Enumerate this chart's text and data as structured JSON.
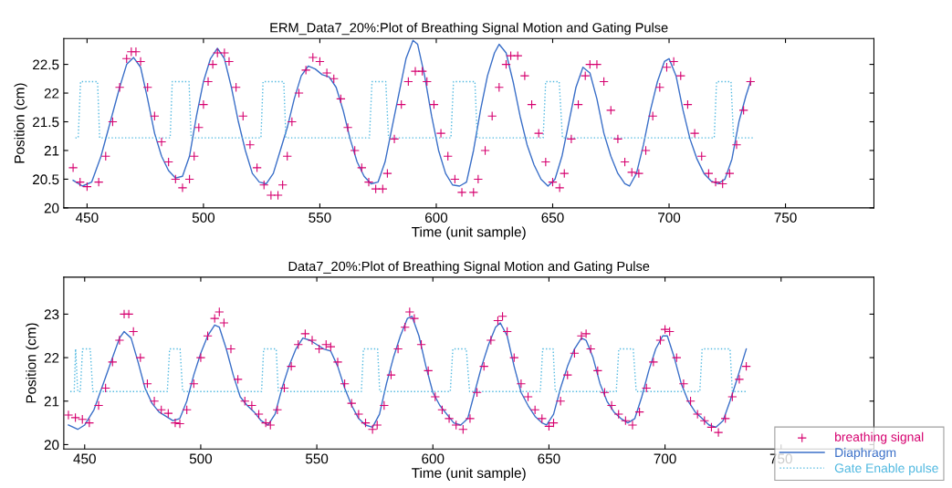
{
  "chart_data": [
    {
      "type": "line",
      "title": "ERM_Data7_20%:Plot of Breathing Signal Motion and Gating Pulse",
      "xlabel": "Time (unit sample)",
      "ylabel": "Position (cm)",
      "xlim": [
        440,
        788
      ],
      "ylim": [
        20,
        22.95
      ],
      "xticks": [
        450,
        500,
        550,
        600,
        650,
        700,
        750
      ],
      "yticks": [
        20,
        20.5,
        21,
        21.5,
        22,
        22.5
      ],
      "grid": false,
      "series": [
        {
          "type": "scatter",
          "marker": "cross",
          "color": "#d6006f",
          "x": [
            444,
            447,
            450,
            455,
            458,
            461,
            464,
            467,
            469,
            471,
            473,
            476,
            479,
            482,
            485,
            488,
            491,
            494,
            496,
            498,
            500,
            502,
            504,
            506,
            509,
            511,
            514,
            517,
            520,
            523,
            526,
            529,
            532,
            534,
            536,
            538,
            541,
            544,
            547,
            550,
            553,
            556,
            559,
            562,
            565,
            568,
            571,
            574,
            577,
            579,
            582,
            585,
            588,
            591,
            594,
            596,
            599,
            602,
            605,
            608,
            611,
            616,
            618,
            621,
            624,
            627,
            630,
            632,
            635,
            638,
            641,
            644,
            647,
            650,
            653,
            655,
            658,
            661,
            664,
            666,
            669,
            672,
            675,
            678,
            681,
            684,
            687,
            690,
            693,
            696,
            699,
            702,
            705,
            708,
            711,
            714,
            717,
            720,
            723,
            726,
            729,
            732,
            735
          ],
          "values": [
            20.7,
            20.45,
            20.37,
            20.45,
            20.9,
            21.5,
            22.1,
            22.6,
            22.72,
            22.72,
            22.55,
            22.1,
            21.6,
            21.15,
            20.8,
            20.5,
            20.35,
            20.5,
            20.9,
            21.4,
            21.8,
            22.2,
            22.5,
            22.7,
            22.7,
            22.55,
            22.1,
            21.6,
            21.1,
            20.7,
            20.4,
            20.22,
            20.22,
            20.4,
            20.9,
            21.5,
            22.0,
            22.4,
            22.62,
            22.55,
            22.35,
            22.25,
            21.9,
            21.4,
            21.0,
            20.7,
            20.45,
            20.33,
            20.33,
            20.6,
            21.2,
            21.8,
            22.2,
            22.38,
            22.38,
            22.2,
            21.8,
            21.3,
            20.9,
            20.5,
            20.27,
            20.27,
            20.5,
            21.0,
            21.6,
            22.1,
            22.5,
            22.65,
            22.65,
            22.3,
            21.8,
            21.3,
            20.8,
            20.45,
            20.35,
            20.6,
            21.2,
            21.8,
            22.3,
            22.5,
            22.5,
            22.2,
            21.7,
            21.2,
            20.8,
            20.62,
            20.6,
            21.0,
            21.6,
            22.1,
            22.45,
            22.55,
            22.3,
            21.8,
            21.3,
            20.9,
            20.6,
            20.45,
            20.42,
            20.6,
            21.1,
            21.7,
            22.2
          ]
        },
        {
          "line_style": "solid",
          "color": "#3a6fc8",
          "x": [
            444,
            448,
            452,
            456,
            460,
            464,
            467,
            470,
            473,
            476,
            479,
            482,
            485,
            488,
            491,
            494,
            497,
            500,
            503,
            506,
            509,
            512,
            515,
            518,
            521,
            524,
            527,
            530,
            533,
            536,
            539,
            542,
            545,
            548,
            551,
            554,
            557,
            560,
            563,
            566,
            569,
            572,
            575,
            578,
            581,
            584,
            587,
            590,
            592,
            595,
            598,
            601,
            604,
            607,
            610,
            613,
            616,
            619,
            622,
            625,
            627,
            630,
            633,
            636,
            639,
            642,
            645,
            648,
            651,
            654,
            657,
            660,
            663,
            666,
            669,
            672,
            675,
            678,
            681,
            683,
            686,
            689,
            692,
            695,
            698,
            700,
            703,
            706,
            709,
            712,
            715,
            718,
            721,
            724,
            727,
            730,
            733,
            735
          ],
          "values": [
            20.48,
            20.38,
            20.45,
            20.9,
            21.5,
            22.1,
            22.5,
            22.62,
            22.45,
            21.9,
            21.3,
            20.9,
            20.65,
            20.52,
            20.55,
            20.9,
            21.6,
            22.2,
            22.6,
            22.78,
            22.6,
            22.1,
            21.5,
            21.0,
            20.6,
            20.45,
            20.42,
            20.6,
            21.0,
            21.4,
            21.9,
            22.3,
            22.47,
            22.42,
            22.32,
            22.28,
            22.1,
            21.7,
            21.2,
            20.8,
            20.55,
            20.42,
            20.45,
            20.8,
            21.4,
            22.0,
            22.6,
            22.92,
            22.85,
            22.3,
            21.6,
            21.0,
            20.6,
            20.4,
            20.38,
            20.45,
            21.0,
            21.7,
            22.3,
            22.7,
            22.85,
            22.7,
            22.2,
            21.6,
            21.1,
            20.75,
            20.5,
            20.38,
            20.5,
            20.9,
            21.5,
            22.1,
            22.45,
            22.35,
            21.9,
            21.3,
            20.9,
            20.6,
            20.42,
            20.38,
            20.6,
            21.1,
            21.7,
            22.2,
            22.55,
            22.6,
            22.3,
            21.7,
            21.2,
            20.85,
            20.6,
            20.47,
            20.42,
            20.5,
            20.85,
            21.5,
            21.95,
            22.2
          ]
        },
        {
          "line_style": "dotted",
          "color": "#4fb8e0",
          "x": [
            445,
            446.2,
            447.2,
            454.5,
            455.4,
            485.7,
            486.6,
            493.8,
            494.7,
            524.7,
            525.6,
            534.5,
            535.4,
            571.3,
            572.4,
            578.3,
            579.5,
            606.3,
            607.4,
            616.6,
            617.6,
            645.9,
            647,
            652.8,
            654.2,
            719.4,
            720.4,
            726.6,
            727.7,
            736.3
          ],
          "values": [
            21.22,
            21.22,
            22.2,
            22.2,
            21.22,
            21.22,
            22.2,
            22.2,
            21.22,
            21.22,
            22.2,
            22.2,
            21.22,
            21.22,
            22.2,
            22.2,
            21.22,
            21.22,
            22.2,
            22.2,
            21.22,
            21.22,
            22.2,
            22.2,
            21.22,
            21.22,
            22.2,
            22.2,
            21.22,
            21.22
          ]
        }
      ]
    },
    {
      "type": "line",
      "title": "Data7_20%:Plot of Breathing Signal Motion and Gating Pulse",
      "xlabel": "Time (unit sample)",
      "ylabel": "Position (cm)",
      "xlim": [
        441,
        790
      ],
      "ylim": [
        19.9,
        23.85
      ],
      "xticks": [
        450,
        500,
        550,
        600,
        650,
        700,
        750
      ],
      "yticks": [
        20,
        21,
        22,
        23
      ],
      "grid": false,
      "legend": "bottom right",
      "series": [
        {
          "name": "breathing signal",
          "type": "scatter",
          "marker": "cross",
          "color": "#d6006f",
          "x": [
            443,
            446,
            449,
            452,
            456,
            459,
            462,
            465,
            467,
            469,
            471,
            474,
            477,
            480,
            483,
            486,
            489,
            491,
            494,
            497,
            500,
            503,
            506,
            508,
            510,
            513,
            516,
            519,
            522,
            525,
            528,
            530,
            533,
            536,
            539,
            542,
            545,
            548,
            551,
            554,
            556,
            559,
            562,
            565,
            568,
            571,
            574,
            576,
            579,
            582,
            585,
            588,
            590,
            592,
            595,
            598,
            601,
            604,
            607,
            610,
            613,
            616,
            619,
            622,
            625,
            628,
            630,
            632,
            635,
            638,
            641,
            644,
            647,
            650,
            652,
            655,
            658,
            661,
            664,
            666,
            668,
            671,
            674,
            677,
            680,
            683,
            686,
            689,
            692,
            695,
            698,
            700,
            702,
            705,
            708,
            711,
            714,
            717,
            720,
            723,
            726,
            729,
            732,
            735
          ],
          "values": [
            20.68,
            20.62,
            20.58,
            20.5,
            20.9,
            21.3,
            21.9,
            22.4,
            23.0,
            23.0,
            22.6,
            22.0,
            21.4,
            21.0,
            20.8,
            20.72,
            20.5,
            20.48,
            20.8,
            21.4,
            22.0,
            22.5,
            22.9,
            23.05,
            22.8,
            22.2,
            21.5,
            21.0,
            20.9,
            20.7,
            20.5,
            20.45,
            20.8,
            21.3,
            21.8,
            22.3,
            22.55,
            22.4,
            22.2,
            22.3,
            22.25,
            21.9,
            21.4,
            20.95,
            20.7,
            20.5,
            20.35,
            20.45,
            20.9,
            21.6,
            22.2,
            22.7,
            23.05,
            22.9,
            22.3,
            21.7,
            21.1,
            20.8,
            20.6,
            20.45,
            20.35,
            20.6,
            21.2,
            21.8,
            22.4,
            22.85,
            22.95,
            22.6,
            22.0,
            21.4,
            21.1,
            20.8,
            20.6,
            20.42,
            20.5,
            21.0,
            21.6,
            22.1,
            22.5,
            22.55,
            22.2,
            21.7,
            21.2,
            20.9,
            20.7,
            20.55,
            20.45,
            20.75,
            21.3,
            21.9,
            22.4,
            22.65,
            22.6,
            22.0,
            21.4,
            21.0,
            20.7,
            20.55,
            20.4,
            20.28,
            20.6,
            21.1,
            21.5,
            21.8
          ]
        },
        {
          "name": "Diaphragm",
          "line_style": "solid",
          "color": "#3a6fc8",
          "x": [
            443,
            447,
            450,
            454,
            458,
            462,
            465,
            467,
            470,
            473,
            476,
            479,
            482,
            485,
            488,
            491,
            494,
            497,
            500,
            503,
            506,
            508,
            511,
            514,
            517,
            520,
            523,
            526,
            529,
            532,
            535,
            538,
            541,
            544,
            547,
            550,
            553,
            556,
            559,
            562,
            565,
            568,
            571,
            574,
            577,
            580,
            583,
            586,
            589,
            591,
            594,
            597,
            600,
            603,
            606,
            609,
            612,
            615,
            618,
            621,
            624,
            627,
            629,
            632,
            635,
            638,
            641,
            644,
            647,
            649,
            652,
            655,
            658,
            661,
            664,
            666,
            669,
            672,
            675,
            678,
            681,
            684,
            687,
            690,
            693,
            696,
            699,
            701,
            704,
            707,
            710,
            713,
            716,
            719,
            722,
            725,
            728,
            731,
            735
          ],
          "values": [
            20.45,
            20.35,
            20.45,
            20.8,
            21.4,
            22.0,
            22.45,
            22.6,
            22.45,
            21.9,
            21.3,
            20.95,
            20.75,
            20.65,
            20.55,
            20.6,
            21.0,
            21.6,
            22.1,
            22.5,
            22.75,
            22.7,
            22.2,
            21.6,
            21.1,
            20.9,
            20.75,
            20.55,
            20.45,
            20.7,
            21.3,
            21.8,
            22.2,
            22.45,
            22.4,
            22.3,
            22.2,
            22.15,
            21.8,
            21.3,
            20.9,
            20.6,
            20.45,
            20.4,
            20.7,
            21.4,
            22.0,
            22.5,
            22.9,
            22.95,
            22.5,
            21.8,
            21.2,
            20.9,
            20.7,
            20.5,
            20.45,
            20.6,
            21.2,
            21.8,
            22.3,
            22.7,
            22.8,
            22.5,
            21.8,
            21.2,
            20.9,
            20.65,
            20.5,
            20.45,
            20.7,
            21.3,
            21.8,
            22.2,
            22.45,
            22.4,
            22.0,
            21.4,
            21.0,
            20.75,
            20.6,
            20.5,
            20.6,
            21.1,
            21.7,
            22.2,
            22.5,
            22.5,
            22.0,
            21.4,
            21.0,
            20.75,
            20.6,
            20.45,
            20.4,
            20.55,
            21.0,
            21.5,
            22.2
          ]
        },
        {
          "name": "Gate Enable pulse",
          "line_style": "dotted",
          "color": "#4fb8e0",
          "x": [
            443.8,
            445.5,
            446.1,
            447,
            448.1,
            449.1,
            452.4,
            453.5,
            485.6,
            486.6,
            491.1,
            492.2,
            526.2,
            527.1,
            532.5,
            533.4,
            569.2,
            570.1,
            576.2,
            577.1,
            607.5,
            608.6,
            614.4,
            615.8,
            646.3,
            647.3,
            651.8,
            652.7,
            679,
            680.1,
            686.3,
            687.6,
            715,
            716,
            728,
            729,
            734.8
          ],
          "values": [
            21.22,
            21.22,
            22.2,
            21.22,
            21.22,
            22.2,
            22.2,
            21.22,
            21.22,
            22.2,
            22.2,
            21.22,
            21.22,
            22.2,
            22.2,
            21.22,
            21.22,
            22.2,
            22.2,
            21.22,
            21.22,
            22.2,
            22.2,
            21.22,
            21.22,
            22.2,
            22.2,
            21.22,
            21.22,
            22.2,
            22.2,
            21.22,
            21.22,
            22.2,
            22.2,
            21.22,
            21.22
          ]
        }
      ]
    }
  ]
}
